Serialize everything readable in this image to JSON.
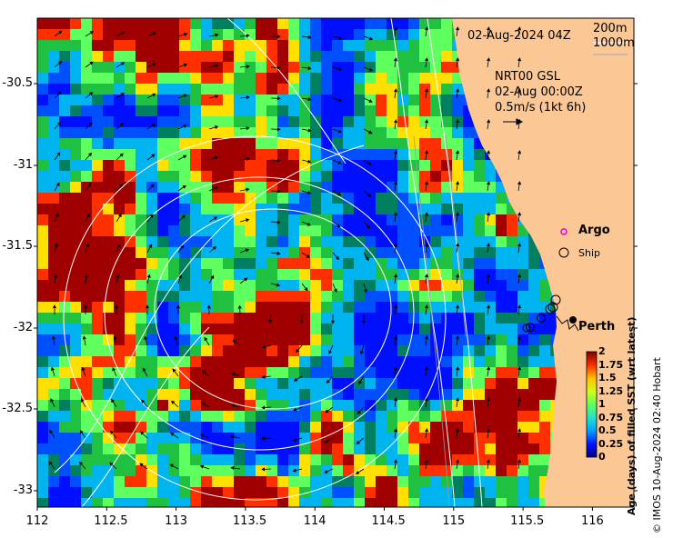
{
  "map": {
    "timestamp": "02-Aug-2024 04Z",
    "depth_contours": [
      "200m",
      "1000m"
    ],
    "current_product": "NRT00 GSL",
    "current_time": "02-Aug 00:00Z",
    "current_scale": "0.5m/s (1kt 6h)",
    "legend": {
      "argo": "Argo",
      "ship": "Ship"
    },
    "city": "Perth",
    "x_ticks": [
      "112",
      "112.5",
      "113",
      "113.5",
      "114",
      "114.5",
      "115",
      "115.5",
      "116"
    ],
    "y_ticks": [
      "-30.5",
      "-31",
      "-31.5",
      "-32",
      "-32.5",
      "-33"
    ],
    "colorbar": {
      "title": "Age (days) of filled SST (wrt latest)",
      "ticks": [
        "2",
        "1.75",
        "1.5",
        "1.25",
        "1",
        "0.75",
        "0.5",
        "0.25",
        "0"
      ]
    },
    "credit": "© IMOS 10-Aug-2024 02:40 Hobart",
    "colors": {
      "land": "#fbc794",
      "ocean_default": "#00b4f0",
      "argo": "#e000e0"
    }
  }
}
